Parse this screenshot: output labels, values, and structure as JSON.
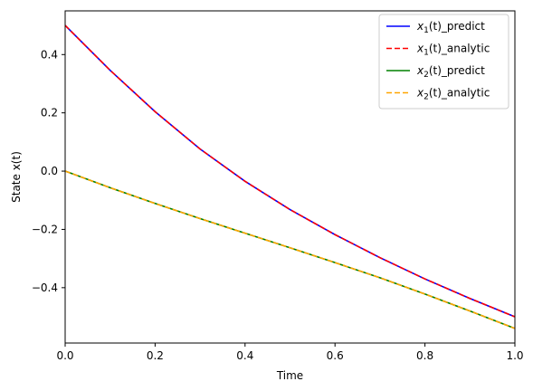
{
  "chart_data": {
    "type": "line",
    "title": "",
    "xlabel": "Time",
    "ylabel": "State x(t)",
    "xlim": [
      0.0,
      1.0
    ],
    "ylim": [
      -0.59,
      0.55
    ],
    "x_ticks": [
      0.0,
      0.2,
      0.4,
      0.6,
      0.8,
      1.0
    ],
    "x_tick_labels": [
      "0.0",
      "0.2",
      "0.4",
      "0.6",
      "0.8",
      "1.0"
    ],
    "y_ticks": [
      0.4,
      0.2,
      0.0,
      -0.2,
      -0.4
    ],
    "y_tick_labels": [
      "0.4",
      "0.2",
      "0.0",
      "−0.2",
      "−0.4"
    ],
    "grid": false,
    "legend_position": "top-right",
    "x": [
      0.0,
      0.1,
      0.2,
      0.3,
      0.4,
      0.5,
      0.6,
      0.7,
      0.8,
      0.9,
      1.0
    ],
    "series": [
      {
        "name": "x1(t)_predict",
        "legend_main": "x",
        "legend_sub": "1",
        "legend_rest": "(t)_predict",
        "color": "#0000ff",
        "dash": "solid",
        "values": [
          0.5,
          0.346,
          0.204,
          0.076,
          -0.035,
          -0.132,
          -0.218,
          -0.297,
          -0.37,
          -0.437,
          -0.5
        ]
      },
      {
        "name": "x1(t)_analytic",
        "legend_main": "x",
        "legend_sub": "1",
        "legend_rest": "(t)_analytic",
        "color": "#ff0000",
        "dash": "dashed",
        "values": [
          0.5,
          0.346,
          0.204,
          0.076,
          -0.035,
          -0.132,
          -0.218,
          -0.297,
          -0.37,
          -0.437,
          -0.5
        ]
      },
      {
        "name": "x2(t)_predict",
        "legend_main": "x",
        "legend_sub": "2",
        "legend_rest": "(t)_predict",
        "color": "#008000",
        "dash": "solid",
        "values": [
          0.0,
          -0.057,
          -0.111,
          -0.163,
          -0.213,
          -0.263,
          -0.314,
          -0.366,
          -0.422,
          -0.48,
          -0.54
        ]
      },
      {
        "name": "x2(t)_analytic",
        "legend_main": "x",
        "legend_sub": "2",
        "legend_rest": "(t)_analytic",
        "color": "#ffa500",
        "dash": "dashed",
        "values": [
          0.0,
          -0.057,
          -0.111,
          -0.163,
          -0.213,
          -0.263,
          -0.314,
          -0.366,
          -0.422,
          -0.48,
          -0.54
        ]
      }
    ]
  }
}
